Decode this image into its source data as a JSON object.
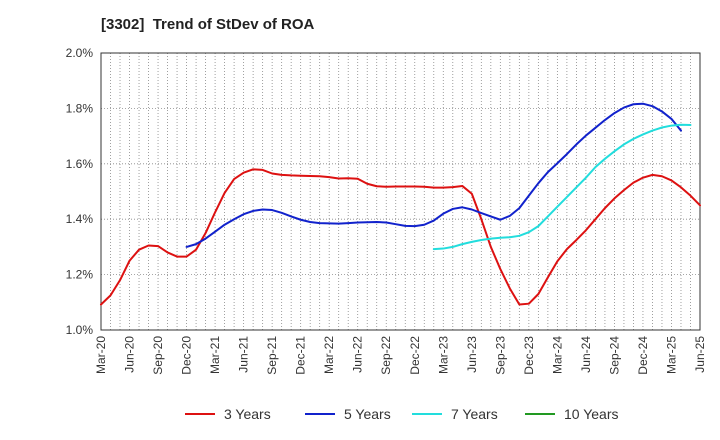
{
  "chart_data": {
    "type": "line",
    "title": "[3302]  Trend of StDev of ROA",
    "xlabel": "",
    "ylabel": "",
    "x_tick_labels": [
      "Mar-20",
      "Jun-20",
      "Sep-20",
      "Dec-20",
      "Mar-21",
      "Jun-21",
      "Sep-21",
      "Dec-21",
      "Mar-22",
      "Jun-22",
      "Sep-22",
      "Dec-22",
      "Mar-23",
      "Jun-23",
      "Sep-23",
      "Dec-23",
      "Mar-24",
      "Jun-24",
      "Sep-24",
      "Dec-24",
      "Mar-25",
      "Jun-25"
    ],
    "y_tick_labels": [
      "1.0%",
      "1.2%",
      "1.4%",
      "1.6%",
      "1.8%",
      "2.0%"
    ],
    "ylim": [
      1.0,
      2.0
    ],
    "grid": true,
    "legend_position": "bottom",
    "series": [
      {
        "name": "3 Years",
        "color": "#dd1111",
        "start_index": 0,
        "values": [
          1.092,
          1.125,
          1.18,
          1.25,
          1.29,
          1.305,
          1.303,
          1.28,
          1.265,
          1.265,
          1.29,
          1.35,
          1.425,
          1.495,
          1.545,
          1.568,
          1.58,
          1.578,
          1.565,
          1.56,
          1.558,
          1.557,
          1.556,
          1.555,
          1.552,
          1.547,
          1.548,
          1.546,
          1.528,
          1.519,
          1.517,
          1.518,
          1.518,
          1.518,
          1.517,
          1.514,
          1.514,
          1.516,
          1.52,
          1.492,
          1.4,
          1.3,
          1.22,
          1.15,
          1.092,
          1.095,
          1.13,
          1.19,
          1.248,
          1.292,
          1.325,
          1.36,
          1.4,
          1.44,
          1.475,
          1.505,
          1.532,
          1.55,
          1.56,
          1.555,
          1.54,
          1.515,
          1.485,
          1.45
        ]
      },
      {
        "name": "5 Years",
        "color": "#1122cc",
        "start_index": 9,
        "values": [
          1.3,
          1.31,
          1.33,
          1.355,
          1.38,
          1.4,
          1.418,
          1.43,
          1.435,
          1.433,
          1.423,
          1.41,
          1.398,
          1.39,
          1.386,
          1.385,
          1.384,
          1.386,
          1.388,
          1.389,
          1.39,
          1.388,
          1.382,
          1.376,
          1.375,
          1.38,
          1.395,
          1.42,
          1.437,
          1.443,
          1.435,
          1.422,
          1.41,
          1.398,
          1.412,
          1.44,
          1.485,
          1.53,
          1.57,
          1.602,
          1.635,
          1.67,
          1.702,
          1.73,
          1.758,
          1.783,
          1.803,
          1.815,
          1.817,
          1.808,
          1.789,
          1.762,
          1.72
        ]
      },
      {
        "name": "7 Years",
        "color": "#22dddd",
        "start_index": 35,
        "values": [
          1.292,
          1.294,
          1.3,
          1.31,
          1.318,
          1.325,
          1.33,
          1.333,
          1.335,
          1.34,
          1.353,
          1.375,
          1.41,
          1.445,
          1.48,
          1.515,
          1.55,
          1.588,
          1.618,
          1.645,
          1.67,
          1.69,
          1.706,
          1.72,
          1.731,
          1.738,
          1.741,
          1.74
        ]
      },
      {
        "name": "10 Years",
        "color": "#229922",
        "start_index": 0,
        "values": []
      }
    ]
  }
}
